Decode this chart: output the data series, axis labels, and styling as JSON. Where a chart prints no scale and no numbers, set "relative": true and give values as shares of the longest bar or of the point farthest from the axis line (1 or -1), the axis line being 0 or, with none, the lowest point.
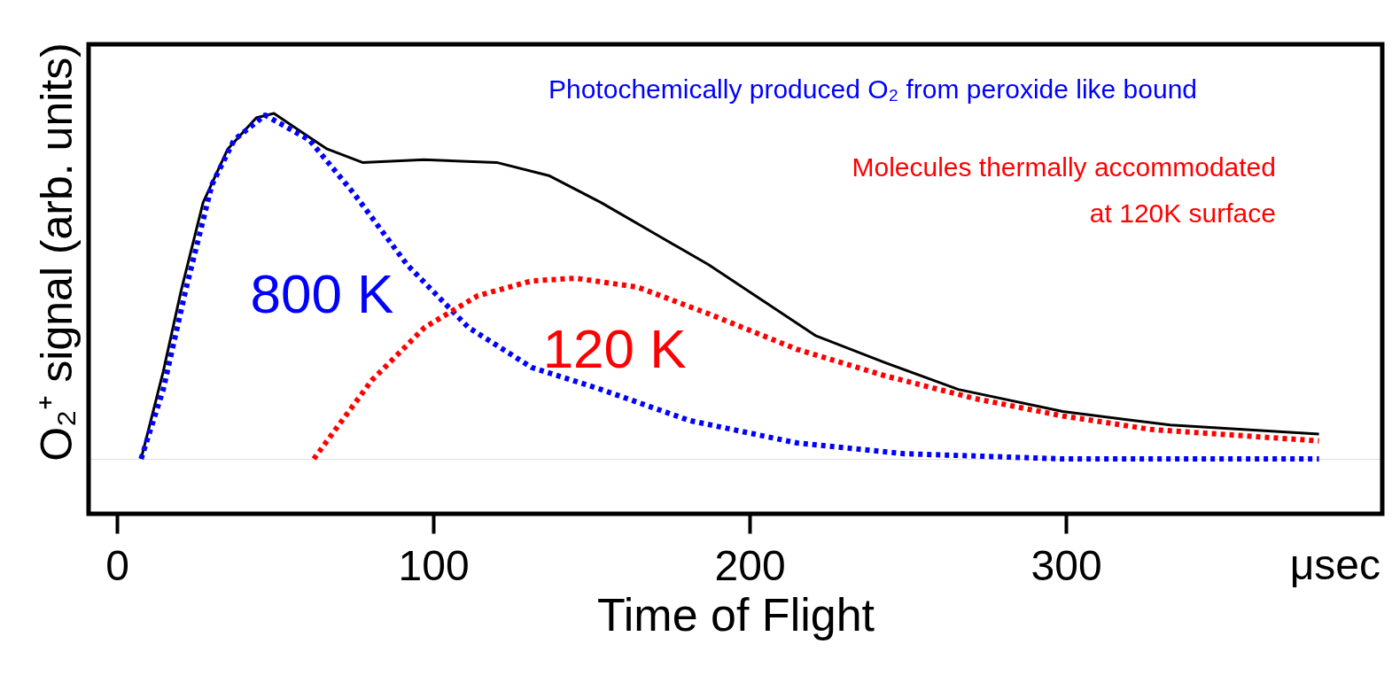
{
  "chart_data": {
    "type": "line",
    "relative": true,
    "xlabel": "Time of Flight",
    "ylabel": "O₂⁺ signal (arb. units)",
    "xlim": [
      -9,
      400
    ],
    "xticks": [
      0,
      100,
      200,
      300
    ],
    "grid": false,
    "marker": "none",
    "series": [
      {
        "color": "#000000",
        "line_style": "solid",
        "x": [
          7.6,
          14.6,
          20.2,
          27.2,
          35,
          44,
          49.6,
          58,
          66.4,
          77.6,
          97,
          120,
          136.5,
          153,
          170,
          187,
          204,
          221,
          243,
          266,
          299,
          333,
          380
        ],
        "values": [
          0,
          0.253,
          0.485,
          0.742,
          0.897,
          0.987,
          1,
          0.948,
          0.897,
          0.858,
          0.866,
          0.858,
          0.82,
          0.742,
          0.652,
          0.562,
          0.459,
          0.356,
          0.278,
          0.201,
          0.137,
          0.098,
          0.072
        ]
      },
      {
        "name": "800 K",
        "color": "#0000ff",
        "line_style": "dotted",
        "x": [
          7.6,
          14.6,
          21.6,
          30,
          37,
          46.8,
          60.8,
          74.9,
          91.7,
          111,
          131,
          153,
          181,
          215,
          249,
          299,
          380
        ],
        "values": [
          0,
          0.201,
          0.485,
          0.794,
          0.923,
          0.995,
          0.923,
          0.768,
          0.562,
          0.381,
          0.265,
          0.201,
          0.111,
          0.046,
          0.015,
          0,
          0
        ]
      },
      {
        "name": "120 K",
        "color": "#ff0000",
        "line_style": "dotted",
        "x": [
          62.2,
          80.5,
          97.3,
          114,
          131,
          145,
          164.6,
          187,
          215,
          243,
          271,
          299,
          327,
          380
        ],
        "values": [
          0,
          0.227,
          0.381,
          0.472,
          0.515,
          0.523,
          0.497,
          0.42,
          0.317,
          0.24,
          0.175,
          0.124,
          0.085,
          0.052
        ]
      }
    ],
    "annotations": [
      "Photochemically produced O₂ from peroxide like bound",
      "Molecules thermally accommodated\nat 120K surface",
      "μsec"
    ]
  }
}
